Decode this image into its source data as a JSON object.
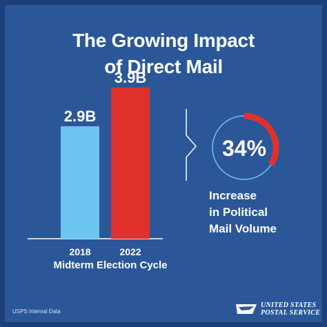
{
  "title": {
    "line1": "The Growing Impact",
    "line2": "of Direct Mail"
  },
  "chart_data": {
    "type": "bar",
    "categories": [
      "2018",
      "2022"
    ],
    "values": [
      2.9,
      3.9
    ],
    "data_labels": [
      "2.9B",
      "3.9B"
    ],
    "bar_colors": [
      "#6cc5f0",
      "#e0302c"
    ],
    "xlabel": "Midterm Election Cycle",
    "ylabel": "",
    "ylim": [
      0,
      4.2
    ],
    "grid": false
  },
  "stat": {
    "value": 34,
    "label": "34%",
    "caption": [
      "Increase",
      "in Political",
      "Mail Volume"
    ],
    "ring_color": "#6cc5f0",
    "arc_color": "#e0302c"
  },
  "footer": {
    "source": "USPS Internal Data",
    "logo_line1": "UNITED STATES",
    "logo_line2": "POSTAL SERVICE",
    "logo_mark": "eagle-icon"
  },
  "colors": {
    "background": "#2b5799",
    "border": "#1d3f7a",
    "text": "#ffffff"
  }
}
